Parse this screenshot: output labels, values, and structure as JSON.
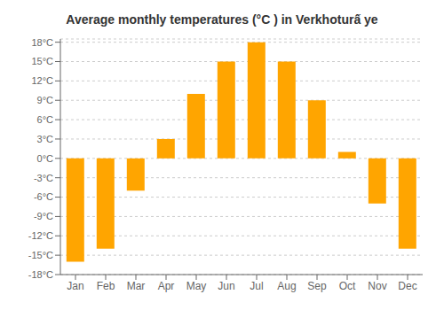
{
  "chart_data": {
    "type": "bar",
    "title": "Average monthly temperatures (°C ) in Verkhoturấ ye",
    "categories": [
      "Jan",
      "Feb",
      "Mar",
      "Apr",
      "May",
      "Jun",
      "Jul",
      "Aug",
      "Sep",
      "Oct",
      "Nov",
      "Dec"
    ],
    "values": [
      -16,
      -14,
      -5,
      3,
      10,
      15,
      18,
      15,
      9,
      1,
      -7,
      -14
    ],
    "color": "#FFA500",
    "ylim": [
      -18,
      18.5
    ],
    "yticks": [
      {
        "value": -18,
        "label": "-18°C"
      },
      {
        "value": -15,
        "label": "-15°C"
      },
      {
        "value": -12,
        "label": "-12°C"
      },
      {
        "value": -9,
        "label": "-9°C"
      },
      {
        "value": -6,
        "label": "-6°C"
      },
      {
        "value": -3,
        "label": "-3°C"
      },
      {
        "value": 0,
        "label": "0°C"
      },
      {
        "value": 3,
        "label": "3°C"
      },
      {
        "value": 6,
        "label": "6°C"
      },
      {
        "value": 9,
        "label": "9°C"
      },
      {
        "value": 12,
        "label": "12°C"
      },
      {
        "value": 15,
        "label": "15°C"
      },
      {
        "value": 18,
        "label": "18°C"
      }
    ],
    "grid": true
  }
}
